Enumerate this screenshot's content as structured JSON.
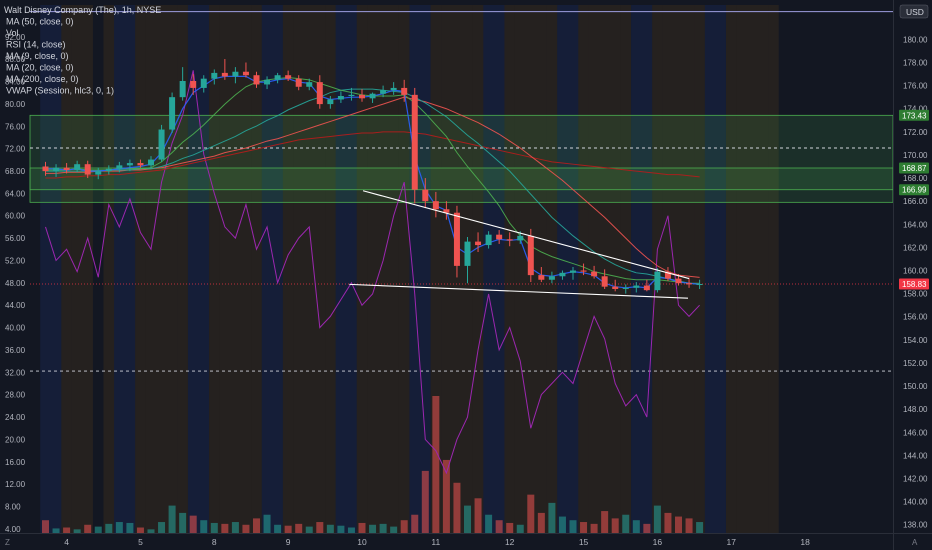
{
  "header": {
    "symbol_line": "Walt Disney Company (The), 1h, NYSE",
    "indicators": [
      "MA (50, close, 0)",
      "Vol",
      "RSI (14, close)",
      "MA (9, close, 0)",
      "MA (20, close, 0)",
      "MA (200, close, 0)",
      "VWAP (Session, hlc3, 0, 1)"
    ]
  },
  "currency_badge": "USD",
  "bottom_icons": {
    "left": "Z",
    "right": "A"
  },
  "colors": {
    "background": "#131722",
    "up": "#26a69a",
    "down": "#ef5350",
    "ma50": "#ef5350",
    "ma200": "#b71c1c",
    "ma20": "#26a69a",
    "ma9": "#4caf50",
    "vwap": "#2962ff",
    "rsi": "#9c27b0",
    "trendline": "#ffffff",
    "zone": "#4caf50",
    "last_price": "#f23645"
  },
  "chart_data": {
    "type": "candlestick",
    "title": "Walt Disney Company (The), 1h, NYSE",
    "x_axis": {
      "ticks": [
        {
          "label": "4",
          "idx": 2
        },
        {
          "label": "5",
          "idx": 9
        },
        {
          "label": "8",
          "idx": 16
        },
        {
          "label": "9",
          "idx": 23
        },
        {
          "label": "10",
          "idx": 30
        },
        {
          "label": "11",
          "idx": 37
        },
        {
          "label": "12",
          "idx": 44
        },
        {
          "label": "15",
          "idx": 51
        },
        {
          "label": "16",
          "idx": 58
        },
        {
          "label": "17",
          "idx": 65
        },
        {
          "label": "18",
          "idx": 72
        }
      ],
      "range": [
        0,
        76
      ]
    },
    "price_axis": {
      "ticks": [
        138,
        140,
        142,
        144,
        146,
        148,
        150,
        152,
        154,
        156,
        158,
        160,
        162,
        164,
        166,
        168,
        170,
        172,
        174,
        176,
        178,
        180
      ],
      "range": [
        137.5,
        182.5
      ],
      "decimals": 2
    },
    "rsi_axis": {
      "ticks": [
        4,
        8,
        12,
        16,
        20,
        24,
        28,
        32,
        36,
        40,
        44,
        48,
        52,
        56,
        60,
        64,
        68,
        72,
        76,
        80,
        84,
        88,
        92
      ],
      "range": [
        1.3,
        95
      ],
      "decimals": 2
    },
    "price_labels": [
      {
        "value": 173.43,
        "text": "173.43"
      },
      {
        "value": 168.87,
        "text": "168.87"
      },
      {
        "value": 166.99,
        "text": "166.99"
      },
      {
        "value": 158.83,
        "text": "158.83",
        "kind": "last"
      }
    ],
    "zones": [
      {
        "top": 173.43,
        "bottom": 165.9
      },
      {
        "top": 168.87,
        "bottom": 166.99
      }
    ],
    "hlines": [
      {
        "value": 170.6,
        "style": "dashed"
      },
      {
        "value": 151.3,
        "style": "dashed"
      },
      {
        "value": 182.4,
        "style": "solid"
      }
    ],
    "trendlines": [
      {
        "name": "upper",
        "from": [
          30.1,
          166.9
        ],
        "to": [
          61.0,
          159.3
        ]
      },
      {
        "name": "lower",
        "from": [
          28.8,
          158.8
        ],
        "to": [
          60.9,
          157.6
        ]
      }
    ],
    "session_shading": [
      {
        "from": 0,
        "to": 2,
        "color": "blue"
      },
      {
        "from": 2,
        "to": 3,
        "color": "orange"
      },
      {
        "from": 3,
        "to": 5,
        "color": "orange"
      },
      {
        "from": 6,
        "to": 7,
        "color": "orange"
      },
      {
        "from": 7,
        "to": 9,
        "color": "blue"
      },
      {
        "from": 9,
        "to": 10,
        "color": "orange"
      },
      {
        "from": 10,
        "to": 13,
        "color": "orange"
      },
      {
        "from": 13,
        "to": 14,
        "color": "orange"
      },
      {
        "from": 14,
        "to": 16,
        "color": "blue"
      },
      {
        "from": 16,
        "to": 17,
        "color": "orange"
      },
      {
        "from": 17,
        "to": 20,
        "color": "orange"
      },
      {
        "from": 20,
        "to": 21,
        "color": "orange"
      },
      {
        "from": 21,
        "to": 23,
        "color": "blue"
      },
      {
        "from": 23,
        "to": 24,
        "color": "orange"
      },
      {
        "from": 24,
        "to": 27,
        "color": "orange"
      },
      {
        "from": 27,
        "to": 28,
        "color": "orange"
      },
      {
        "from": 28,
        "to": 30,
        "color": "blue"
      },
      {
        "from": 30,
        "to": 31,
        "color": "orange"
      },
      {
        "from": 31,
        "to": 34,
        "color": "orange"
      },
      {
        "from": 34,
        "to": 35,
        "color": "orange"
      },
      {
        "from": 35,
        "to": 37,
        "color": "blue"
      },
      {
        "from": 37,
        "to": 38,
        "color": "orange"
      },
      {
        "from": 38,
        "to": 41,
        "color": "orange"
      },
      {
        "from": 41,
        "to": 42,
        "color": "orange"
      },
      {
        "from": 42,
        "to": 44,
        "color": "blue"
      },
      {
        "from": 44,
        "to": 45,
        "color": "orange"
      },
      {
        "from": 45,
        "to": 48,
        "color": "orange"
      },
      {
        "from": 48,
        "to": 49,
        "color": "orange"
      },
      {
        "from": 49,
        "to": 51,
        "color": "blue"
      },
      {
        "from": 51,
        "to": 52,
        "color": "orange"
      },
      {
        "from": 52,
        "to": 55,
        "color": "orange"
      },
      {
        "from": 55,
        "to": 56,
        "color": "orange"
      },
      {
        "from": 56,
        "to": 58,
        "color": "blue"
      },
      {
        "from": 58,
        "to": 59,
        "color": "orange"
      },
      {
        "from": 59,
        "to": 62,
        "color": "orange"
      },
      {
        "from": 62,
        "to": 63,
        "color": "orange"
      },
      {
        "from": 63,
        "to": 65,
        "color": "blue"
      },
      {
        "from": 65,
        "to": 66,
        "color": "orange"
      },
      {
        "from": 66,
        "to": 69,
        "color": "orange"
      },
      {
        "from": 69,
        "to": 70,
        "color": "orange"
      }
    ],
    "candles": [
      [
        169.0,
        169.4,
        168.2,
        168.6
      ],
      [
        168.6,
        169.2,
        168.1,
        168.9
      ],
      [
        168.9,
        169.3,
        168.4,
        168.7
      ],
      [
        168.7,
        169.5,
        168.5,
        169.2
      ],
      [
        169.2,
        169.5,
        168.0,
        168.3
      ],
      [
        168.3,
        168.9,
        167.9,
        168.6
      ],
      [
        168.6,
        169.1,
        168.3,
        168.8
      ],
      [
        168.8,
        169.4,
        168.5,
        169.1
      ],
      [
        169.1,
        169.6,
        168.6,
        169.3
      ],
      [
        169.3,
        169.6,
        168.9,
        169.1
      ],
      [
        169.1,
        169.9,
        168.8,
        169.6
      ],
      [
        169.6,
        172.6,
        169.4,
        172.2
      ],
      [
        172.2,
        175.4,
        171.9,
        175.0
      ],
      [
        175.0,
        177.6,
        174.7,
        176.4
      ],
      [
        176.4,
        177.0,
        175.2,
        175.8
      ],
      [
        175.8,
        176.9,
        175.4,
        176.6
      ],
      [
        176.6,
        177.4,
        176.1,
        177.1
      ],
      [
        177.1,
        178.3,
        176.5,
        176.8
      ],
      [
        176.8,
        177.6,
        176.2,
        177.2
      ],
      [
        177.2,
        178.0,
        176.7,
        176.9
      ],
      [
        176.9,
        177.2,
        175.8,
        176.1
      ],
      [
        176.1,
        176.8,
        175.7,
        176.5
      ],
      [
        176.5,
        177.1,
        176.2,
        176.9
      ],
      [
        176.9,
        177.3,
        176.4,
        176.6
      ],
      [
        176.6,
        176.9,
        175.6,
        175.9
      ],
      [
        175.9,
        176.6,
        175.6,
        176.3
      ],
      [
        176.3,
        176.9,
        174.0,
        174.4
      ],
      [
        174.4,
        175.1,
        174.0,
        174.8
      ],
      [
        174.8,
        175.5,
        174.5,
        175.1
      ],
      [
        175.1,
        175.8,
        174.7,
        175.2
      ],
      [
        175.2,
        175.7,
        174.6,
        174.9
      ],
      [
        174.9,
        175.4,
        174.5,
        175.3
      ],
      [
        175.3,
        176.0,
        175.0,
        175.6
      ],
      [
        175.6,
        176.3,
        175.2,
        175.8
      ],
      [
        175.8,
        176.5,
        174.6,
        175.2
      ],
      [
        175.2,
        175.8,
        165.8,
        167.0
      ],
      [
        167.0,
        168.0,
        165.4,
        166.0
      ],
      [
        166.0,
        166.8,
        164.6,
        165.3
      ],
      [
        165.3,
        166.0,
        164.4,
        165.0
      ],
      [
        165.0,
        165.6,
        159.4,
        160.4
      ],
      [
        160.4,
        162.9,
        158.9,
        162.5
      ],
      [
        162.5,
        163.3,
        161.6,
        162.2
      ],
      [
        162.2,
        163.4,
        161.9,
        163.1
      ],
      [
        163.1,
        163.5,
        162.3,
        162.7
      ],
      [
        162.7,
        163.3,
        162.1,
        162.6
      ],
      [
        162.6,
        163.4,
        162.3,
        163.0
      ],
      [
        163.0,
        163.6,
        159.0,
        159.6
      ],
      [
        159.6,
        160.3,
        159.0,
        159.2
      ],
      [
        159.2,
        159.9,
        158.9,
        159.5
      ],
      [
        159.5,
        160.0,
        159.2,
        159.8
      ],
      [
        159.8,
        160.3,
        159.2,
        160.0
      ],
      [
        160.0,
        160.6,
        159.6,
        159.9
      ],
      [
        159.9,
        160.4,
        159.3,
        159.5
      ],
      [
        159.5,
        160.1,
        158.4,
        158.6
      ],
      [
        158.6,
        159.2,
        158.2,
        158.4
      ],
      [
        158.4,
        158.8,
        158.0,
        158.5
      ],
      [
        158.5,
        159.0,
        158.1,
        158.7
      ],
      [
        158.7,
        159.2,
        158.2,
        158.3
      ],
      [
        158.3,
        160.2,
        158.1,
        159.9
      ],
      [
        159.9,
        160.3,
        159.1,
        159.3
      ],
      [
        159.3,
        159.7,
        158.7,
        158.9
      ],
      [
        158.9,
        159.4,
        158.5,
        158.8
      ],
      [
        158.8,
        159.2,
        158.4,
        158.83
      ]
    ],
    "volume": [
      14,
      5,
      6,
      4,
      9,
      7,
      10,
      12,
      11,
      6,
      4,
      12,
      30,
      22,
      19,
      14,
      11,
      10,
      12,
      9,
      16,
      20,
      9,
      8,
      10,
      7,
      12,
      9,
      8,
      6,
      11,
      9,
      10,
      7,
      14,
      20,
      68,
      150,
      80,
      55,
      30,
      38,
      20,
      14,
      11,
      9,
      42,
      22,
      33,
      18,
      14,
      12,
      10,
      24,
      16,
      20,
      14,
      10,
      30,
      22,
      18,
      16,
      12
    ],
    "rsi": [
      58,
      52,
      54,
      50,
      56,
      49,
      62,
      58,
      63,
      57,
      54,
      66,
      73,
      78,
      86,
      71,
      64,
      58,
      56,
      62,
      54,
      58,
      48,
      53,
      56,
      58,
      40,
      42,
      45,
      48,
      44,
      46,
      52,
      60,
      66,
      46,
      20,
      18,
      14,
      20,
      24,
      36,
      46,
      36,
      40,
      34,
      22,
      28,
      30,
      32,
      30,
      36,
      42,
      38,
      30,
      26,
      28,
      24,
      54,
      60,
      44,
      42,
      44
    ],
    "ma9": [
      168.7,
      168.7,
      168.7,
      168.8,
      168.7,
      168.7,
      168.7,
      168.8,
      168.8,
      168.8,
      168.9,
      169.4,
      170.2,
      171.1,
      171.8,
      172.6,
      173.5,
      174.4,
      175.2,
      175.9,
      176.3,
      176.5,
      176.6,
      176.7,
      176.6,
      176.5,
      176.2,
      175.9,
      175.6,
      175.4,
      175.2,
      175.1,
      175.1,
      175.1,
      175.2,
      174.5,
      173.6,
      172.6,
      171.6,
      170.2,
      169.0,
      167.9,
      166.8,
      165.6,
      164.1,
      163.0,
      162.1,
      161.6,
      161.2,
      160.9,
      160.6,
      160.3,
      159.9,
      159.7,
      159.5,
      159.3,
      159.2,
      159.2,
      159.2,
      159.1,
      159.0,
      158.9,
      158.9
    ],
    "ma20": [
      168.6,
      168.6,
      168.6,
      168.6,
      168.6,
      168.6,
      168.7,
      168.7,
      168.7,
      168.8,
      168.8,
      169.0,
      169.3,
      169.7,
      170.0,
      170.4,
      170.8,
      171.2,
      171.6,
      172.1,
      172.5,
      173.0,
      173.4,
      173.9,
      174.3,
      174.7,
      175.0,
      175.4,
      175.6,
      175.7,
      175.7,
      175.7,
      175.6,
      175.5,
      175.4,
      175.0,
      174.5,
      173.9,
      173.3,
      172.5,
      171.7,
      171.0,
      170.2,
      169.4,
      168.6,
      167.6,
      166.6,
      165.6,
      164.6,
      163.8,
      163.0,
      162.3,
      161.6,
      161.0,
      160.5,
      160.1,
      159.8,
      159.7,
      159.5,
      159.3,
      159.1,
      158.9,
      158.8
    ],
    "ma50": [
      168.4,
      168.4,
      168.5,
      168.5,
      168.5,
      168.6,
      168.6,
      168.6,
      168.7,
      168.7,
      168.8,
      168.9,
      169.1,
      169.3,
      169.5,
      169.7,
      169.9,
      170.2,
      170.4,
      170.6,
      170.9,
      171.2,
      171.4,
      171.7,
      172.0,
      172.3,
      172.6,
      172.9,
      173.2,
      173.5,
      173.8,
      174.1,
      174.4,
      174.7,
      175.0,
      174.8,
      174.6,
      174.3,
      174.0,
      173.6,
      173.2,
      172.8,
      172.3,
      171.8,
      171.2,
      170.6,
      169.9,
      169.2,
      168.5,
      167.8,
      167.0,
      166.2,
      165.4,
      164.6,
      163.7,
      162.8,
      161.9,
      161.1,
      160.4,
      159.9,
      159.6,
      159.5,
      159.4
    ],
    "ma200": [
      168.0,
      168.0,
      168.1,
      168.1,
      168.2,
      168.2,
      168.3,
      168.3,
      168.4,
      168.5,
      168.6,
      168.7,
      168.9,
      169.1,
      169.3,
      169.5,
      169.7,
      169.9,
      170.1,
      170.3,
      170.5,
      170.7,
      170.9,
      171.1,
      171.3,
      171.4,
      171.5,
      171.6,
      171.7,
      171.8,
      171.9,
      171.9,
      172.0,
      172.0,
      172.0,
      171.9,
      171.8,
      171.6,
      171.4,
      171.2,
      171.0,
      170.8,
      170.6,
      170.4,
      170.2,
      170.0,
      169.8,
      169.6,
      169.4,
      169.3,
      169.2,
      169.1,
      169.0,
      168.9,
      168.8,
      168.7,
      168.6,
      168.5,
      168.4,
      168.3,
      168.3,
      168.2,
      168.1
    ],
    "vwap": [
      168.8,
      168.8,
      168.7,
      168.8,
      168.6,
      168.6,
      168.7,
      168.8,
      168.9,
      169.0,
      169.2,
      170.2,
      172.0,
      174.0,
      175.4,
      176.0,
      176.6,
      176.8,
      176.8,
      176.8,
      176.3,
      176.3,
      176.5,
      176.6,
      176.3,
      176.2,
      175.1,
      174.8,
      174.9,
      175.0,
      175.0,
      175.1,
      175.3,
      175.6,
      175.5,
      169.8,
      167.0,
      165.6,
      165.2,
      162.0,
      161.4,
      162.0,
      162.4,
      162.7,
      162.6,
      162.7,
      160.2,
      159.6,
      159.5,
      159.7,
      159.9,
      159.8,
      159.6,
      158.9,
      158.6,
      158.5,
      158.6,
      158.5,
      159.4,
      159.3,
      159.0,
      158.9,
      158.8
    ]
  }
}
